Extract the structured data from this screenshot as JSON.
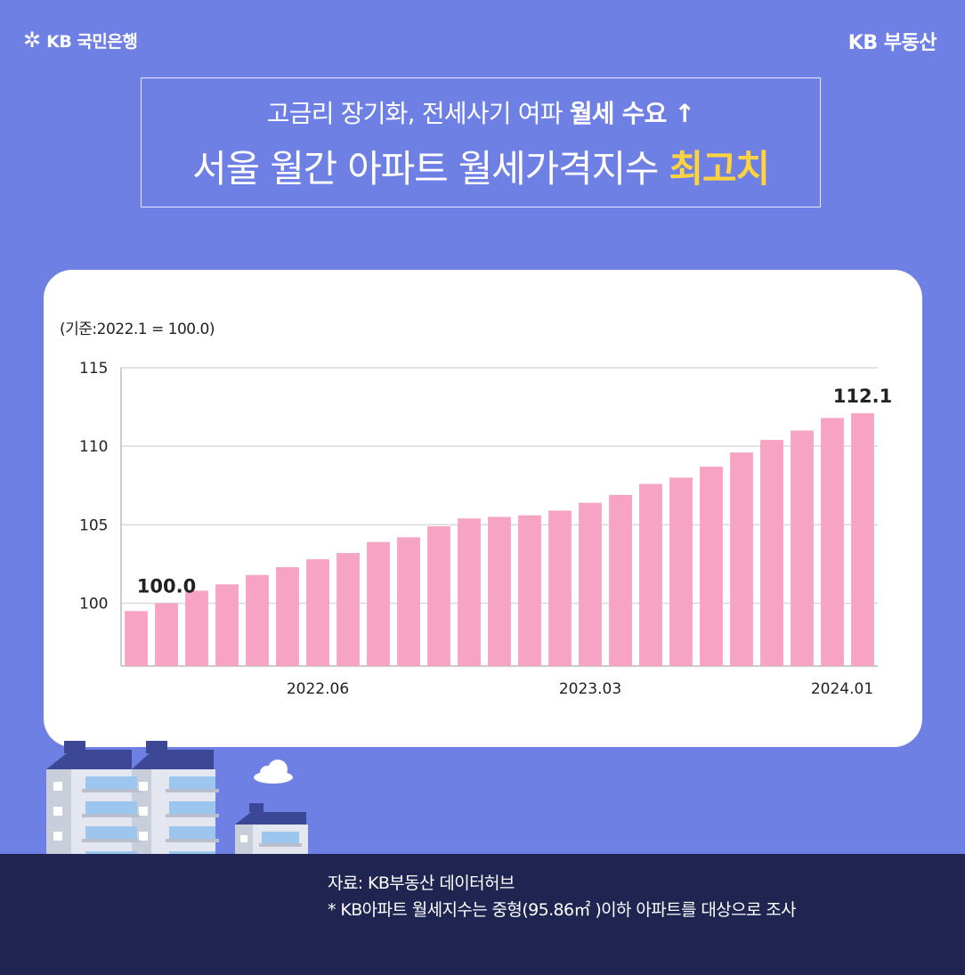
{
  "header": {
    "bank_brand": "KB 국민은행",
    "realestate_brand": "KB 부동산"
  },
  "headline": {
    "line1_plain": "고금리 장기화, 전세사기 여파 ",
    "line1_bold": "월세 수요 ↑",
    "line2_plain": "서울 월간 아파트 월세가격지수 ",
    "line2_highlight": "최고치"
  },
  "chart_data": {
    "type": "bar",
    "base_note": "(기준:2022.1 = 100.0)",
    "values": [
      99.5,
      100.0,
      100.8,
      101.2,
      101.8,
      102.3,
      102.8,
      103.2,
      103.9,
      104.2,
      104.9,
      105.4,
      105.5,
      105.6,
      105.9,
      106.4,
      106.9,
      107.6,
      108.0,
      108.7,
      109.6,
      110.4,
      111.0,
      111.8,
      112.1
    ],
    "x_tick_labels": [
      {
        "index": 6,
        "label": "2022.06"
      },
      {
        "index": 15,
        "label": "2023.03"
      },
      {
        "index": 25,
        "label": "2024.01"
      }
    ],
    "y_ticks": [
      100,
      105,
      110,
      115
    ],
    "ylim": [
      96,
      115
    ],
    "data_labels": [
      {
        "index": 1,
        "label": "100.0"
      },
      {
        "index": 24,
        "label": "112.1"
      }
    ],
    "grid": true,
    "bar_color": "#f7a3c3"
  },
  "source": {
    "line1": "자료: KB부동산 데이터허브",
    "line2": "* KB아파트 월세지수는 중형(95.86㎡ )이하 아파트를 대상으로 조사"
  }
}
